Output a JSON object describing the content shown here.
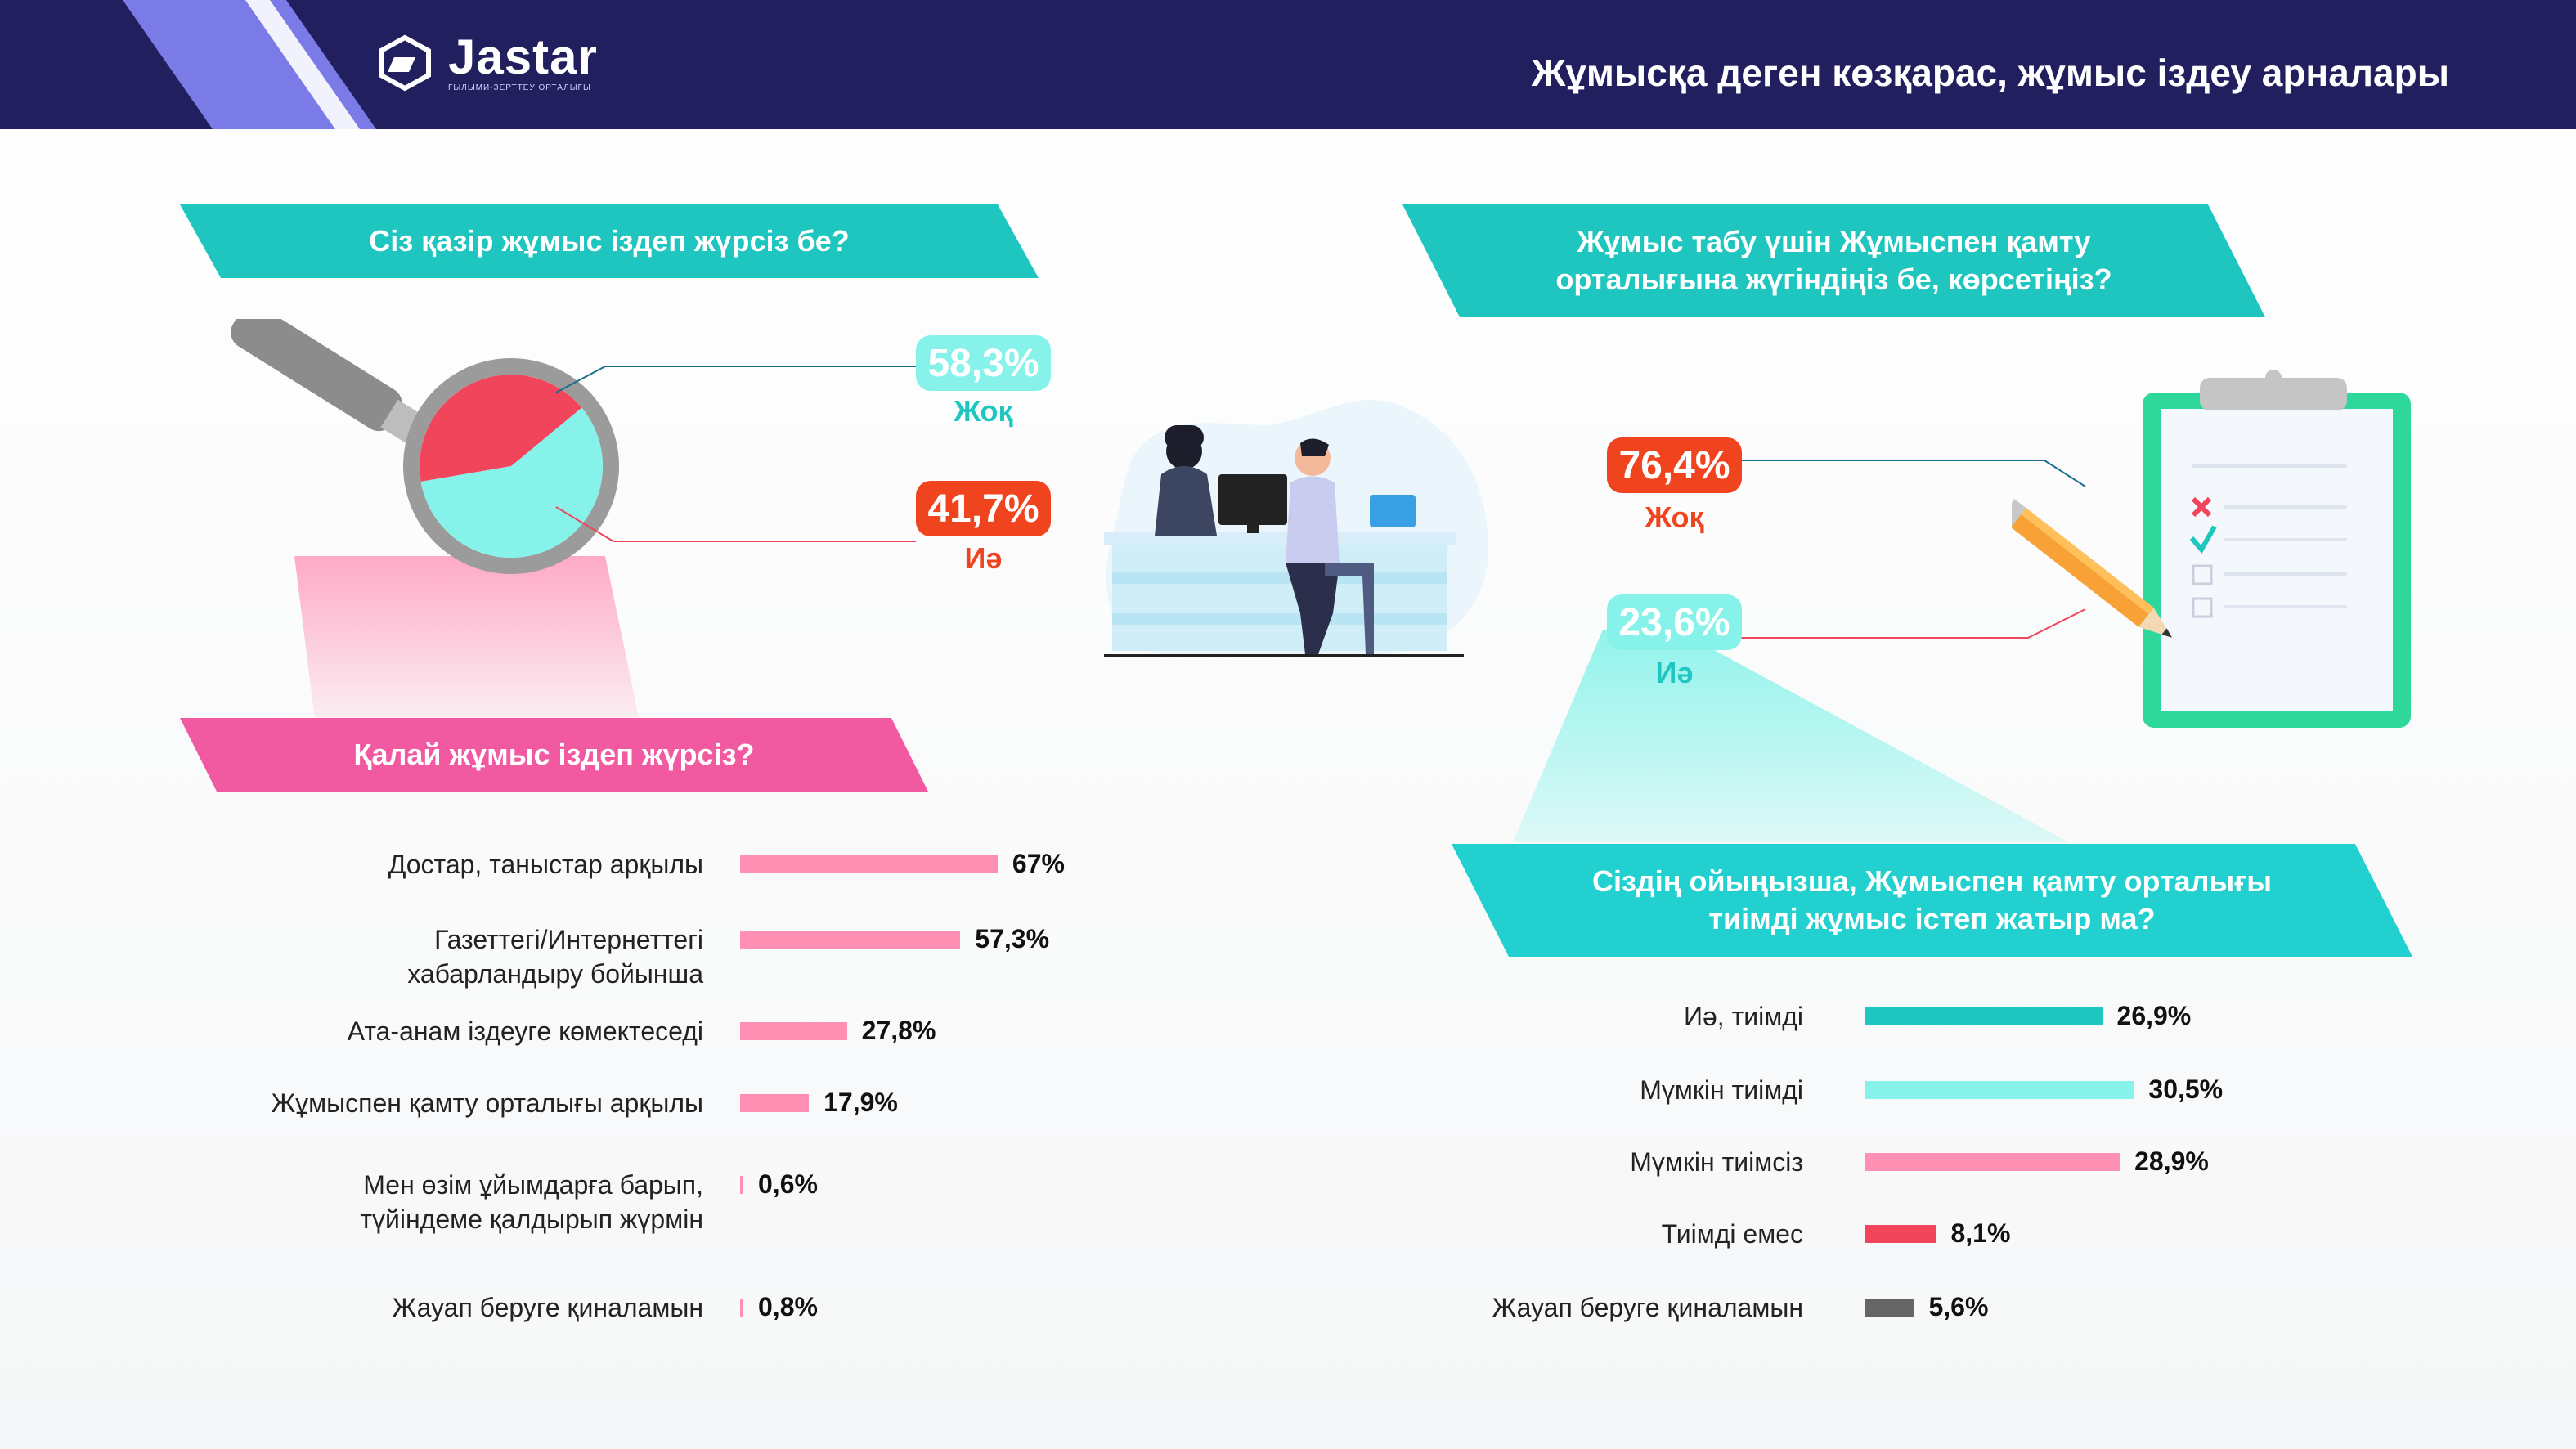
{
  "header": {
    "brand_name": "Jastar",
    "brand_sub": "ҒЫЛЫМИ-ЗЕРТТЕУ ОРТАЛЫҒЫ",
    "title": "Жұмысқа деген көзқарас, жұмыс іздеу арналары"
  },
  "colors": {
    "navy": "#221f5e",
    "teal": "#1ec6bf",
    "light_teal": "#86f2ea",
    "pink": "#ff8fb3",
    "red": "#f0455a",
    "magenta": "#f15aa0",
    "orange_red": "#f0441f",
    "gray": "#666666"
  },
  "icons": {
    "logo": "jastar-logo-icon",
    "magnifier": "magnifier-icon",
    "office": "office-meeting-illustration",
    "clipboard": "clipboard-checklist-icon",
    "pencil": "pencil-icon"
  },
  "chart_data": [
    {
      "type": "pie",
      "title": "Сіз қазір жұмыс іздеп жүрсіз бе?",
      "slices": [
        {
          "label": "Жоқ",
          "value": 58.3,
          "display": "58,3%",
          "color": "#86f2ea"
        },
        {
          "label": "Иә",
          "value": 41.7,
          "display": "41,7%",
          "color": "#f0455a"
        }
      ]
    },
    {
      "type": "bar",
      "title": "Қалай жұмыс іздеп жүрсіз?",
      "categories": [
        "Достар, таныстар арқылы",
        "Газеттегі/Интернеттегі хабарландыру бойынша",
        "Ата-анам іздеуге көмектеседі",
        "Жұмыспен қамту орталығы арқылы",
        "Мен өзім ұйымдарға барып, түйіндеме қалдырып жүрмін",
        "Жауап беруге қиналамын"
      ],
      "values": [
        67,
        57.3,
        27.8,
        17.9,
        0.6,
        0.8
      ],
      "display": [
        "67%",
        "57,3%",
        "27,8%",
        "17,9%",
        "0,6%",
        "0,8%"
      ],
      "label_lines": [
        [
          "Достар, таныстар арқылы"
        ],
        [
          "Газеттегі/Интернеттегі",
          "хабарландыру бойынша"
        ],
        [
          "Ата-анам іздеуге көмектеседі"
        ],
        [
          "Жұмыспен қамту орталығы арқылы"
        ],
        [
          "Мен өзім ұйымдарға барып,",
          "түйіндеме қалдырып жүрмін"
        ],
        [
          "Жауап беруге қиналамын"
        ]
      ],
      "color": "#ff8fb3"
    },
    {
      "type": "pie",
      "title": "Жұмыс табу үшін Жұмыспен қамту орталығына жүгіндіңіз бе, көрсетіңіз?",
      "title_lines": [
        "Жұмыс табу үшін Жұмыспен қамту",
        "орталығына жүгіндіңіз бе, көрсетіңіз?"
      ],
      "slices": [
        {
          "label": "Жоқ",
          "value": 76.4,
          "display": "76,4%",
          "color": "#f0441f"
        },
        {
          "label": "Иә",
          "value": 23.6,
          "display": "23,6%",
          "color": "#1ec6bf"
        }
      ]
    },
    {
      "type": "bar",
      "title": "Сіздің ойыңызша, Жұмыспен қамту орталығы тиімді жұмыс істеп жатыр ма?",
      "title_lines": [
        "Сіздің ойыңызша, Жұмыспен қамту орталығы",
        "тиімді жұмыс істеп жатыр ма?"
      ],
      "categories": [
        "Иә, тиімді",
        "Мүмкін тиімді",
        "Мүмкін тиімсіз",
        "Тиімді емес",
        "Жауап беруге қиналамын"
      ],
      "values": [
        26.9,
        30.5,
        28.9,
        8.1,
        5.6
      ],
      "display": [
        "26,9%",
        "30,5%",
        "28,9%",
        "8,1%",
        "5,6%"
      ],
      "colors": [
        "#1ec6bf",
        "#86f2ea",
        "#ff8fb3",
        "#f0455a",
        "#666666"
      ]
    }
  ]
}
